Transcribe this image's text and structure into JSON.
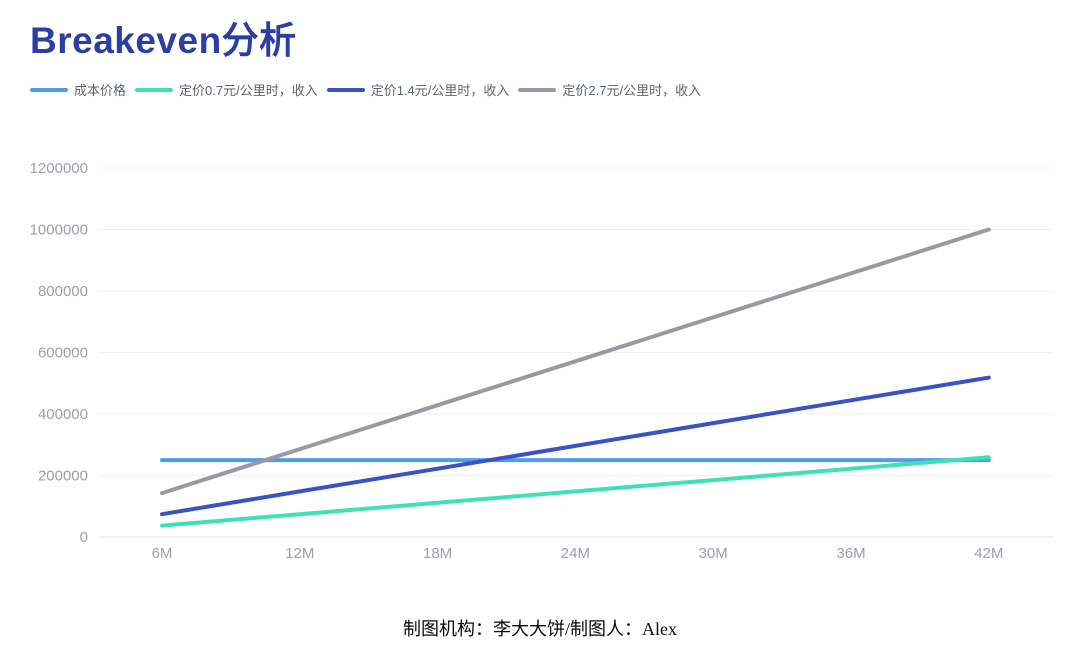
{
  "title": "Breakeven分析",
  "legend": {
    "items": [
      {
        "label": "成本价格",
        "color": "#4f9cec"
      },
      {
        "label": "定价0.7元/公里时，收入",
        "color": "#41e0b3"
      },
      {
        "label": "定价1.4元/公里时，收入",
        "color": "#3a52c4"
      },
      {
        "label": "定价2.7元/公里时，收入",
        "color": "#9799a5"
      }
    ]
  },
  "chart_data": {
    "type": "line",
    "title": "Breakeven分析",
    "xlabel": "",
    "ylabel": "",
    "x_labels": [
      "6M",
      "12M",
      "18M",
      "24M",
      "30M",
      "36M",
      "42M"
    ],
    "x": [
      6,
      12,
      18,
      24,
      30,
      36,
      42
    ],
    "series": [
      {
        "name": "成本价格",
        "color": "#4f9cec",
        "values": [
          250000,
          250000,
          250000,
          250000,
          250000,
          250000,
          250000
        ]
      },
      {
        "name": "定价0.7元/公里时，收入",
        "color": "#41e0b3",
        "values": [
          37037,
          74074,
          111111,
          148148,
          185185,
          222222,
          259259
        ]
      },
      {
        "name": "定价1.4元/公里时，收入",
        "color": "#3a52c4",
        "values": [
          74074,
          148148,
          222222,
          296296,
          370370,
          444444,
          518519
        ]
      },
      {
        "name": "定价2.7元/公里时，收入",
        "color": "#9799a5",
        "values": [
          142857,
          285714,
          428571,
          571429,
          714286,
          857143,
          1000000
        ]
      }
    ],
    "y_ticks": [
      0,
      200000,
      400000,
      600000,
      800000,
      1000000,
      1200000
    ],
    "ylim": [
      0,
      1200000
    ],
    "grid": true,
    "legend_position": "top"
  },
  "colors": {
    "title": "#2c3da3",
    "axis_label": "#9b9fa6",
    "gridline": "#f0f1f5",
    "axis_line": "#e2e4e9",
    "legend_text": "#5c6472"
  },
  "footer": {
    "text": "制图机构：李大大饼/制图人：Alex"
  }
}
